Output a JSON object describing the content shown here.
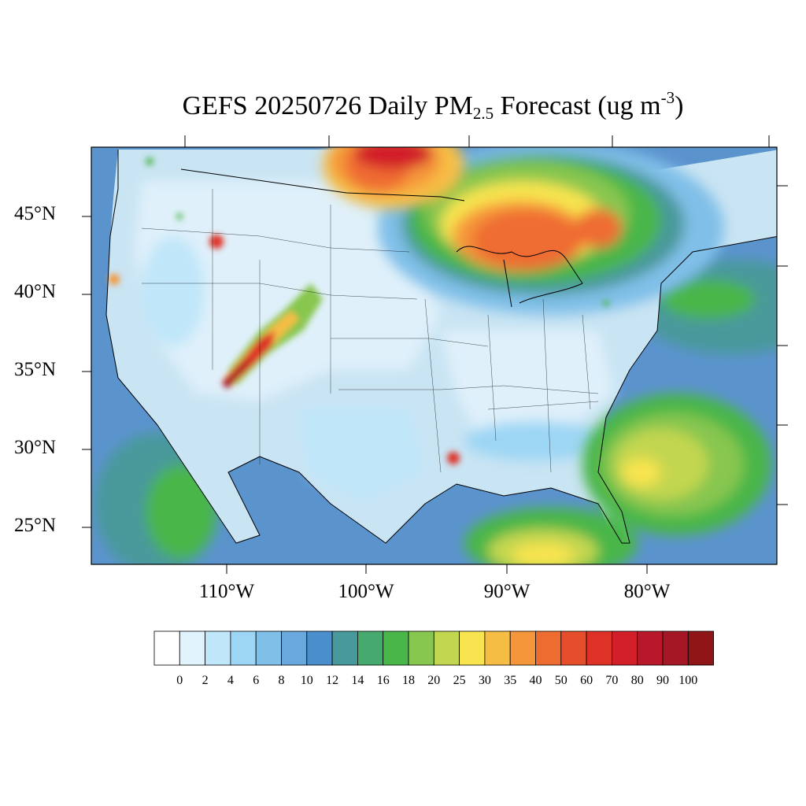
{
  "title": {
    "pre": "GEFS 20250726 Daily PM",
    "sub": "2.5",
    "post": " Forecast (ug m",
    "sup": "-3",
    "close": ")"
  },
  "lat_labels": [
    "45°N",
    "40°N",
    "35°N",
    "30°N",
    "25°N"
  ],
  "lon_labels": [
    "110°W",
    "100°W",
    "90°W",
    "80°W"
  ],
  "colorbar": {
    "labels": [
      "0",
      "2",
      "4",
      "6",
      "8",
      "10",
      "12",
      "14",
      "16",
      "18",
      "20",
      "25",
      "30",
      "35",
      "40",
      "50",
      "60",
      "70",
      "80",
      "90",
      "100"
    ],
    "colors": [
      "#ffffff",
      "#e1f3fc",
      "#bfe6f9",
      "#9cd6f4",
      "#80bfe8",
      "#69a8dc",
      "#4a8fcb",
      "#48999b",
      "#46a96e",
      "#48b649",
      "#87c64f",
      "#c3d650",
      "#f7e44f",
      "#f6bd45",
      "#f5963b",
      "#ef6c31",
      "#e64d2a",
      "#de3127",
      "#d21f2a",
      "#b9182a",
      "#a51725",
      "#8f1516"
    ]
  },
  "map_colors": {
    "ocean": "#5b93cd",
    "land": "#c9e4f3",
    "light": "#dff0fa"
  }
}
